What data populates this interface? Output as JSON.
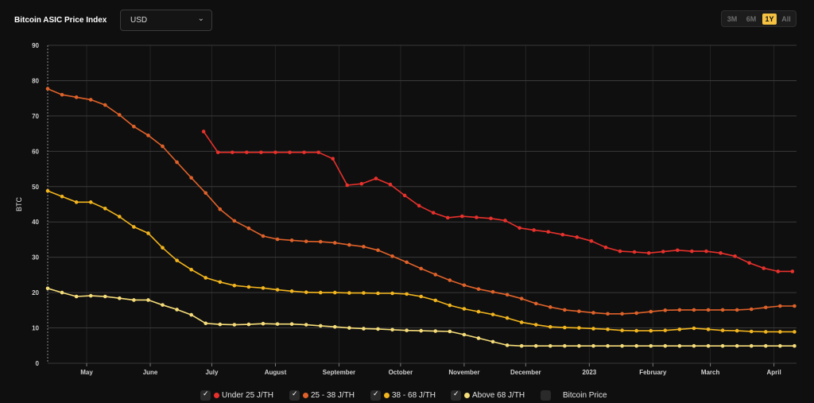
{
  "header": {
    "title": "Bitcoin ASIC Price Index",
    "currency_value": "USD",
    "ranges": [
      {
        "label": "3M",
        "active": false
      },
      {
        "label": "6M",
        "active": false
      },
      {
        "label": "1Y",
        "active": true
      },
      {
        "label": "All",
        "active": false
      }
    ]
  },
  "legend": [
    {
      "label": "Under 25 J/TH",
      "color": "#e8312c",
      "checked": true
    },
    {
      "label": "25 - 38 J/TH",
      "color": "#e0622a",
      "checked": true
    },
    {
      "label": "38 - 68 J/TH",
      "color": "#f2b51e",
      "checked": true
    },
    {
      "label": "Above 68 J/TH",
      "color": "#f6dd7a",
      "checked": true
    },
    {
      "label": "Bitcoin Price",
      "color": "",
      "checked": false
    }
  ],
  "chart_data": {
    "type": "line",
    "ylabel": "BTC",
    "ylim": [
      0,
      90
    ],
    "y_ticks": [
      0,
      10,
      20,
      30,
      40,
      50,
      60,
      70,
      80,
      90
    ],
    "x_range": [
      "2022-04-12",
      "2023-04-12"
    ],
    "x_ticks": [
      {
        "date": "2022-05-01",
        "label": "May"
      },
      {
        "date": "2022-06-01",
        "label": "June"
      },
      {
        "date": "2022-07-01",
        "label": "July"
      },
      {
        "date": "2022-08-01",
        "label": "August"
      },
      {
        "date": "2022-09-01",
        "label": "September"
      },
      {
        "date": "2022-10-01",
        "label": "October"
      },
      {
        "date": "2022-11-01",
        "label": "November"
      },
      {
        "date": "2022-12-01",
        "label": "December"
      },
      {
        "date": "2023-01-01",
        "label": "2023"
      },
      {
        "date": "2023-02-01",
        "label": "February"
      },
      {
        "date": "2023-03-01",
        "label": "March"
      },
      {
        "date": "2023-04-01",
        "label": "April"
      }
    ],
    "grid": true,
    "series": [
      {
        "name": "Under 25 J/TH",
        "color": "#e8312c",
        "points": [
          [
            "2022-06-27",
            65.6
          ],
          [
            "2022-07-04",
            59.7
          ],
          [
            "2022-07-11",
            59.7
          ],
          [
            "2022-07-18",
            59.7
          ],
          [
            "2022-07-25",
            59.7
          ],
          [
            "2022-08-01",
            59.7
          ],
          [
            "2022-08-08",
            59.7
          ],
          [
            "2022-08-15",
            59.7
          ],
          [
            "2022-08-22",
            59.7
          ],
          [
            "2022-08-29",
            57.9
          ],
          [
            "2022-09-05",
            50.4
          ],
          [
            "2022-09-12",
            50.8
          ],
          [
            "2022-09-19",
            52.3
          ],
          [
            "2022-09-26",
            50.6
          ],
          [
            "2022-10-03",
            47.5
          ],
          [
            "2022-10-10",
            44.6
          ],
          [
            "2022-10-17",
            42.6
          ],
          [
            "2022-10-24",
            41.2
          ],
          [
            "2022-10-31",
            41.6
          ],
          [
            "2022-11-07",
            41.3
          ],
          [
            "2022-11-14",
            41.0
          ],
          [
            "2022-11-21",
            40.4
          ],
          [
            "2022-11-28",
            38.3
          ],
          [
            "2022-12-05",
            37.7
          ],
          [
            "2022-12-12",
            37.2
          ],
          [
            "2022-12-19",
            36.4
          ],
          [
            "2022-12-26",
            35.7
          ],
          [
            "2023-01-02",
            34.6
          ],
          [
            "2023-01-09",
            32.8
          ],
          [
            "2023-01-16",
            31.7
          ],
          [
            "2023-01-23",
            31.5
          ],
          [
            "2023-01-30",
            31.2
          ],
          [
            "2023-02-06",
            31.6
          ],
          [
            "2023-02-13",
            32.0
          ],
          [
            "2023-02-20",
            31.7
          ],
          [
            "2023-02-27",
            31.7
          ],
          [
            "2023-03-06",
            31.2
          ],
          [
            "2023-03-13",
            30.3
          ],
          [
            "2023-03-20",
            28.4
          ],
          [
            "2023-03-27",
            26.9
          ],
          [
            "2023-04-03",
            26.0
          ],
          [
            "2023-04-10",
            26.0
          ]
        ]
      },
      {
        "name": "25 - 38 J/TH",
        "color": "#e0622a",
        "points": [
          [
            "2022-04-12",
            77.7
          ],
          [
            "2022-04-19",
            76.0
          ],
          [
            "2022-04-26",
            75.3
          ],
          [
            "2022-05-03",
            74.6
          ],
          [
            "2022-05-10",
            73.1
          ],
          [
            "2022-05-17",
            70.3
          ],
          [
            "2022-05-24",
            67.0
          ],
          [
            "2022-05-31",
            64.5
          ],
          [
            "2022-06-07",
            61.4
          ],
          [
            "2022-06-14",
            56.9
          ],
          [
            "2022-06-21",
            52.5
          ],
          [
            "2022-06-28",
            48.2
          ],
          [
            "2022-07-05",
            43.6
          ],
          [
            "2022-07-12",
            40.3
          ],
          [
            "2022-07-19",
            38.2
          ],
          [
            "2022-07-26",
            36.0
          ],
          [
            "2022-08-02",
            35.1
          ],
          [
            "2022-08-09",
            34.8
          ],
          [
            "2022-08-16",
            34.5
          ],
          [
            "2022-08-23",
            34.4
          ],
          [
            "2022-08-30",
            34.1
          ],
          [
            "2022-09-06",
            33.5
          ],
          [
            "2022-09-13",
            33.0
          ],
          [
            "2022-09-20",
            32.0
          ],
          [
            "2022-09-27",
            30.3
          ],
          [
            "2022-10-04",
            28.6
          ],
          [
            "2022-10-11",
            26.8
          ],
          [
            "2022-10-18",
            25.1
          ],
          [
            "2022-10-25",
            23.5
          ],
          [
            "2022-11-01",
            22.1
          ],
          [
            "2022-11-08",
            21.0
          ],
          [
            "2022-11-15",
            20.2
          ],
          [
            "2022-11-22",
            19.4
          ],
          [
            "2022-11-29",
            18.3
          ],
          [
            "2022-12-06",
            16.9
          ],
          [
            "2022-12-13",
            15.9
          ],
          [
            "2022-12-20",
            15.1
          ],
          [
            "2022-12-27",
            14.7
          ],
          [
            "2023-01-03",
            14.3
          ],
          [
            "2023-01-10",
            14.0
          ],
          [
            "2023-01-17",
            14.0
          ],
          [
            "2023-01-24",
            14.2
          ],
          [
            "2023-01-31",
            14.6
          ],
          [
            "2023-02-07",
            15.0
          ],
          [
            "2023-02-14",
            15.1
          ],
          [
            "2023-02-21",
            15.1
          ],
          [
            "2023-02-28",
            15.1
          ],
          [
            "2023-03-07",
            15.1
          ],
          [
            "2023-03-14",
            15.1
          ],
          [
            "2023-03-21",
            15.3
          ],
          [
            "2023-03-28",
            15.8
          ],
          [
            "2023-04-04",
            16.2
          ],
          [
            "2023-04-11",
            16.2
          ]
        ]
      },
      {
        "name": "38 - 68 J/TH",
        "color": "#f2b51e",
        "points": [
          [
            "2022-04-12",
            48.8
          ],
          [
            "2022-04-19",
            47.2
          ],
          [
            "2022-04-26",
            45.6
          ],
          [
            "2022-05-03",
            45.6
          ],
          [
            "2022-05-10",
            43.8
          ],
          [
            "2022-05-17",
            41.5
          ],
          [
            "2022-05-24",
            38.6
          ],
          [
            "2022-05-31",
            36.8
          ],
          [
            "2022-06-07",
            32.7
          ],
          [
            "2022-06-14",
            29.1
          ],
          [
            "2022-06-21",
            26.5
          ],
          [
            "2022-06-28",
            24.2
          ],
          [
            "2022-07-05",
            23.0
          ],
          [
            "2022-07-12",
            22.0
          ],
          [
            "2022-07-19",
            21.6
          ],
          [
            "2022-07-26",
            21.3
          ],
          [
            "2022-08-02",
            20.8
          ],
          [
            "2022-08-09",
            20.4
          ],
          [
            "2022-08-16",
            20.1
          ],
          [
            "2022-08-23",
            20.0
          ],
          [
            "2022-08-30",
            20.0
          ],
          [
            "2022-09-06",
            19.9
          ],
          [
            "2022-09-13",
            19.9
          ],
          [
            "2022-09-20",
            19.8
          ],
          [
            "2022-09-27",
            19.8
          ],
          [
            "2022-10-04",
            19.6
          ],
          [
            "2022-10-11",
            18.9
          ],
          [
            "2022-10-18",
            17.8
          ],
          [
            "2022-10-25",
            16.4
          ],
          [
            "2022-11-01",
            15.4
          ],
          [
            "2022-11-08",
            14.6
          ],
          [
            "2022-11-15",
            13.8
          ],
          [
            "2022-11-22",
            12.8
          ],
          [
            "2022-11-29",
            11.6
          ],
          [
            "2022-12-06",
            10.9
          ],
          [
            "2022-12-13",
            10.3
          ],
          [
            "2022-12-20",
            10.1
          ],
          [
            "2022-12-27",
            10.0
          ],
          [
            "2023-01-03",
            9.8
          ],
          [
            "2023-01-10",
            9.6
          ],
          [
            "2023-01-17",
            9.3
          ],
          [
            "2023-01-24",
            9.2
          ],
          [
            "2023-01-31",
            9.2
          ],
          [
            "2023-02-07",
            9.3
          ],
          [
            "2023-02-14",
            9.6
          ],
          [
            "2023-02-21",
            9.9
          ],
          [
            "2023-02-28",
            9.6
          ],
          [
            "2023-03-07",
            9.3
          ],
          [
            "2023-03-14",
            9.2
          ],
          [
            "2023-03-21",
            9.0
          ],
          [
            "2023-03-28",
            8.9
          ],
          [
            "2023-04-04",
            8.9
          ],
          [
            "2023-04-11",
            8.9
          ]
        ]
      },
      {
        "name": "Above 68 J/TH",
        "color": "#f6dd7a",
        "points": [
          [
            "2022-04-12",
            21.2
          ],
          [
            "2022-04-19",
            20.0
          ],
          [
            "2022-04-26",
            18.9
          ],
          [
            "2022-05-03",
            19.1
          ],
          [
            "2022-05-10",
            18.9
          ],
          [
            "2022-05-17",
            18.4
          ],
          [
            "2022-05-24",
            17.9
          ],
          [
            "2022-05-31",
            17.9
          ],
          [
            "2022-06-07",
            16.5
          ],
          [
            "2022-06-14",
            15.2
          ],
          [
            "2022-06-21",
            13.7
          ],
          [
            "2022-06-28",
            11.3
          ],
          [
            "2022-07-05",
            11.0
          ],
          [
            "2022-07-12",
            10.9
          ],
          [
            "2022-07-19",
            11.0
          ],
          [
            "2022-07-26",
            11.2
          ],
          [
            "2022-08-02",
            11.1
          ],
          [
            "2022-08-09",
            11.1
          ],
          [
            "2022-08-16",
            10.9
          ],
          [
            "2022-08-23",
            10.6
          ],
          [
            "2022-08-30",
            10.3
          ],
          [
            "2022-09-06",
            10.0
          ],
          [
            "2022-09-13",
            9.8
          ],
          [
            "2022-09-20",
            9.7
          ],
          [
            "2022-09-27",
            9.5
          ],
          [
            "2022-10-04",
            9.3
          ],
          [
            "2022-10-11",
            9.2
          ],
          [
            "2022-10-18",
            9.1
          ],
          [
            "2022-10-25",
            9.0
          ],
          [
            "2022-11-01",
            8.1
          ],
          [
            "2022-11-08",
            7.1
          ],
          [
            "2022-11-15",
            6.1
          ],
          [
            "2022-11-22",
            5.1
          ],
          [
            "2022-11-29",
            4.9
          ],
          [
            "2022-12-06",
            4.9
          ],
          [
            "2022-12-13",
            4.9
          ],
          [
            "2022-12-20",
            4.9
          ],
          [
            "2022-12-27",
            4.9
          ],
          [
            "2023-01-03",
            4.9
          ],
          [
            "2023-01-10",
            4.9
          ],
          [
            "2023-01-17",
            4.9
          ],
          [
            "2023-01-24",
            4.9
          ],
          [
            "2023-01-31",
            4.9
          ],
          [
            "2023-02-07",
            4.9
          ],
          [
            "2023-02-14",
            4.9
          ],
          [
            "2023-02-21",
            4.9
          ],
          [
            "2023-02-28",
            4.9
          ],
          [
            "2023-03-07",
            4.9
          ],
          [
            "2023-03-14",
            4.9
          ],
          [
            "2023-03-21",
            4.9
          ],
          [
            "2023-03-28",
            4.9
          ],
          [
            "2023-04-04",
            4.9
          ],
          [
            "2023-04-11",
            4.9
          ]
        ]
      }
    ]
  }
}
